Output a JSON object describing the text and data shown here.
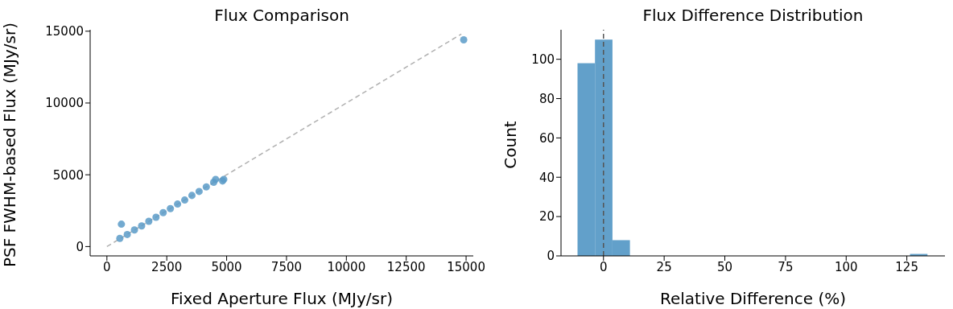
{
  "chart_data": [
    {
      "type": "scatter",
      "title": "Flux Comparison",
      "xlabel": "Fixed Aperture Flux (MJy/sr)",
      "ylabel": "PSF FWHM-based Flux (MJy/sr)",
      "xlim": [
        -700,
        15300
      ],
      "ylim": [
        -650,
        15100
      ],
      "xticks": [
        0,
        2500,
        5000,
        7500,
        10000,
        12500,
        15000
      ],
      "yticks": [
        0,
        5000,
        10000,
        15000
      ],
      "marker": "circle",
      "series": [
        {
          "color": "#5b9bc8",
          "x": [
            540,
            850,
            1150,
            1450,
            1750,
            2050,
            2350,
            2650,
            2950,
            3250,
            3550,
            3850,
            4150,
            605,
            4460,
            4540,
            4830,
            4880,
            14900
          ],
          "values": [
            570,
            840,
            1160,
            1440,
            1760,
            2040,
            2360,
            2640,
            2960,
            3240,
            3560,
            3840,
            4160,
            1560,
            4480,
            4680,
            4570,
            4680,
            14400
          ]
        },
        {
          "type": "line",
          "color": "#b0b0b0",
          "line_style": "dashed",
          "marker": "none",
          "x": [
            0,
            14800
          ],
          "values": [
            0,
            14800
          ]
        }
      ]
    },
    {
      "type": "histogram",
      "title": "Flux Difference Distribution",
      "xlabel": "Relative Difference (%)",
      "ylabel": "Count",
      "xlim": [
        -17.5,
        140.7
      ],
      "ylim": [
        0,
        115
      ],
      "xticks": [
        0,
        25,
        50,
        75,
        100,
        125
      ],
      "yticks": [
        0,
        20,
        40,
        60,
        80,
        100
      ],
      "color": "#62a0ca",
      "bins": [
        -10.7,
        -3.5,
        3.7,
        10.9,
        18.1,
        25.4,
        32.6,
        39.8,
        47.0,
        54.2,
        61.4,
        68.6,
        75.8,
        83.0,
        90.2,
        97.5,
        104.7,
        111.9,
        119.1,
        126.3,
        133.5
      ],
      "values": [
        98,
        110,
        8,
        0,
        0,
        0,
        0,
        0,
        0,
        0,
        0,
        0,
        0,
        0,
        0,
        0,
        0,
        0,
        0,
        1
      ],
      "ref_lines": [
        {
          "axis": "x",
          "value": 0,
          "color": "#555555",
          "line_style": "dashed"
        }
      ]
    }
  ]
}
